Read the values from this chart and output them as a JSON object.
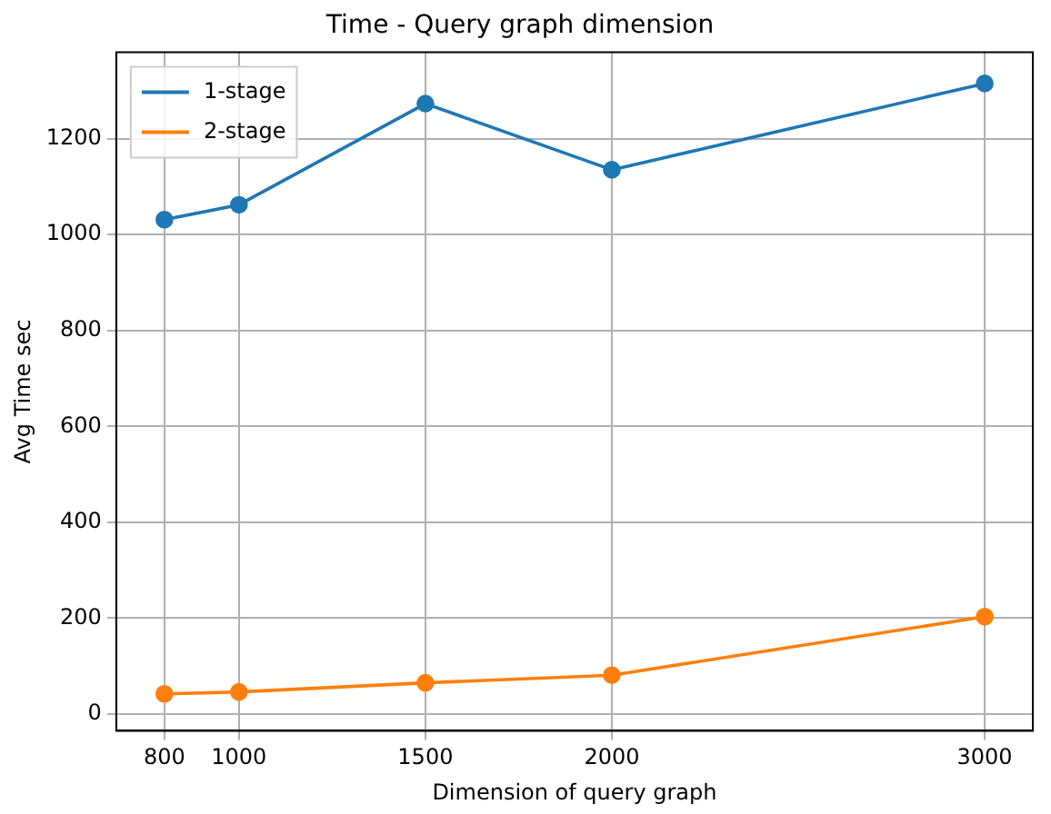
{
  "chart_data": {
    "type": "line",
    "title": "Time - Query graph dimension",
    "xlabel": "Dimension of query graph",
    "ylabel": "Avg Time sec",
    "x": [
      800,
      1000,
      1500,
      2000,
      3000
    ],
    "series": [
      {
        "name": "1-stage",
        "color": "#1f77b4",
        "values": [
          1031,
          1062,
          1273,
          1135,
          1315
        ]
      },
      {
        "name": "2-stage",
        "color": "#ff7f0e",
        "values": [
          42,
          46,
          65,
          81,
          203
        ]
      }
    ],
    "xlim": [
      671,
      3129
    ],
    "xticks": [
      800,
      1000,
      1500,
      2000,
      3000
    ],
    "ylim": [
      -35,
      1380
    ],
    "yticks": [
      0,
      200,
      400,
      600,
      800,
      1000,
      1200
    ],
    "grid": true,
    "legend": "top left",
    "marker": "circle",
    "line_style": "solid"
  }
}
